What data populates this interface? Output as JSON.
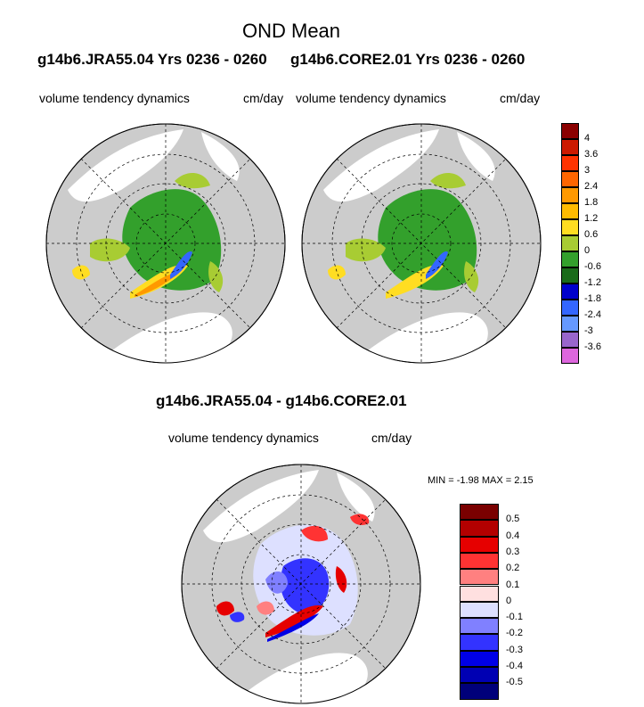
{
  "header": {
    "title": "OND Mean",
    "left_case": "g14b6.JRA55.04  Yrs 0236 - 0260",
    "right_case": "g14b6.CORE2.01  Yrs 0236 - 0260",
    "diff_title": "g14b6.JRA55.04 - g14b6.CORE2.01"
  },
  "panels": {
    "left": {
      "variable": "volume tendency dynamics",
      "units": "cm/day"
    },
    "right": {
      "variable": "volume tendency dynamics",
      "units": "cm/day"
    },
    "diff": {
      "variable": "volume tendency dynamics",
      "units": "cm/day",
      "min_label": "MIN =",
      "min_value": "-1.98",
      "max_label": "MAX =",
      "max_value": "2.15"
    }
  },
  "colorbar_top": {
    "labels": [
      "4",
      "3.6",
      "3",
      "2.4",
      "1.8",
      "1.2",
      "0.6",
      "0",
      "-0.6",
      "-1.2",
      "-1.8",
      "-2.4",
      "-3",
      "-3.6"
    ],
    "colors": [
      "#8b0000",
      "#cc1a00",
      "#ff3300",
      "#ff6600",
      "#ff9900",
      "#ffbb00",
      "#ffdd22",
      "#a8cc33",
      "#33a02c",
      "#1a6b1a",
      "#0000cc",
      "#3366ff",
      "#6699ff",
      "#9966cc",
      "#dd66dd"
    ]
  },
  "colorbar_diff": {
    "labels": [
      "0.5",
      "0.4",
      "0.3",
      "0.2",
      "0.1",
      "0",
      "-0.1",
      "-0.2",
      "-0.3",
      "-0.4",
      "-0.5"
    ],
    "colors": [
      "#7a0000",
      "#b30000",
      "#e60000",
      "#ff3333",
      "#ff8080",
      "#ffe0e0",
      "#dde0ff",
      "#8080ff",
      "#3333ff",
      "#0000e6",
      "#0000b3",
      "#00007a"
    ]
  }
}
